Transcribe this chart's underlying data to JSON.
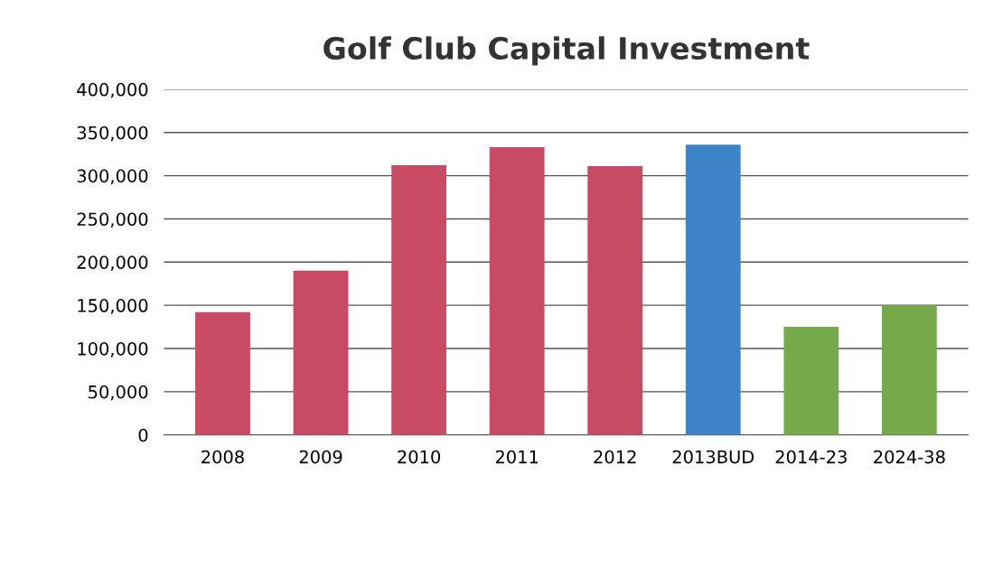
{
  "chart_data": {
    "type": "bar",
    "title": "Golf Club Capital Investment",
    "categories": [
      "2008",
      "2009",
      "2010",
      "2011",
      "2012",
      "2013BUD",
      "2014-23",
      "2024-38"
    ],
    "values": [
      142000,
      190000,
      312000,
      333000,
      311000,
      336000,
      125000,
      150000
    ],
    "colors": [
      "#c94a63",
      "#c94a63",
      "#c94a63",
      "#c94a63",
      "#c94a63",
      "#3d85c8",
      "#75a94a",
      "#75a94a"
    ],
    "ylim": [
      0,
      400000
    ],
    "yticks": [
      {
        "value": 0,
        "label": "0"
      },
      {
        "value": 50000,
        "label": "50,000"
      },
      {
        "value": 100000,
        "label": "100,000"
      },
      {
        "value": 150000,
        "label": "150,000"
      },
      {
        "value": 200000,
        "label": "200,000"
      },
      {
        "value": 250000,
        "label": "250,000"
      },
      {
        "value": 300000,
        "label": "300,000"
      },
      {
        "value": 350000,
        "label": "350,000"
      },
      {
        "value": 400000,
        "label": "400,000"
      }
    ],
    "grid": "y"
  }
}
